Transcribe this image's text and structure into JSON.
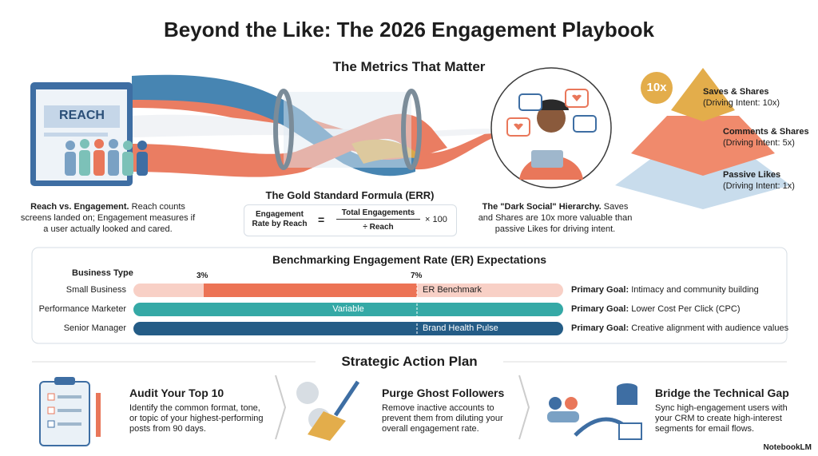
{
  "header": {
    "title": "Beyond the Like: The 2026 Engagement Playbook"
  },
  "metrics": {
    "title": "The Metrics That Matter",
    "reach": {
      "screen_label": "REACH",
      "heading": "Reach vs. Engagement.",
      "text": "Reach counts screens landed on; Engagement measures if a user actually looked and cared."
    },
    "formula": {
      "title": "The Gold Standard Formula (ERR)",
      "lhs": "Engagement Rate by Reach",
      "equals": "=",
      "numerator": "Total Engagements",
      "denominator": "÷ Reach",
      "multiplier": "× 100"
    },
    "dark_social": {
      "heading": "The \"Dark Social\" Hierarchy.",
      "text": "Saves and Shares are 10x more valuable than passive Likes for driving intent."
    },
    "pyramid": {
      "badge": "10x",
      "levels": [
        {
          "label": "Saves & Shares",
          "detail": "(Driving Intent: 10x)"
        },
        {
          "label": "Comments & Shares",
          "detail": "(Driving Intent: 5x)"
        },
        {
          "label": "Passive Likes",
          "detail": "(Driving Intent: 1x)"
        }
      ]
    }
  },
  "benchmark": {
    "title": "Benchmarking Engagement Rate (ER) Expectations",
    "column_header": "Business Type",
    "low_marker": "3%",
    "high_marker": "7%",
    "rows": [
      {
        "type": "Small Business",
        "bar_label": "ER Benchmark",
        "goal_label": "Primary Goal:",
        "goal": "Intimacy and community building"
      },
      {
        "type": "Performance Marketer",
        "bar_label": "Variable",
        "goal_label": "Primary Goal:",
        "goal": "Lower Cost Per Click (CPC)"
      },
      {
        "type": "Senior Manager",
        "bar_label": "Brand Health Pulse",
        "goal_label": "Primary Goal:",
        "goal": "Creative alignment with audience values"
      }
    ]
  },
  "action_plan": {
    "title": "Strategic Action Plan",
    "steps": [
      {
        "title": "Audit Your Top 10",
        "text": "Identify the common format, tone, or topic of your highest-performing posts from 90 days."
      },
      {
        "title": "Purge Ghost Followers",
        "text": "Remove inactive accounts to prevent them from diluting your overall engagement rate."
      },
      {
        "title": "Bridge the Technical Gap",
        "text": "Sync high-engagement users with your CRM to create high-interest segments for email flows."
      }
    ]
  },
  "footer": {
    "brand": "NotebookLM"
  }
}
